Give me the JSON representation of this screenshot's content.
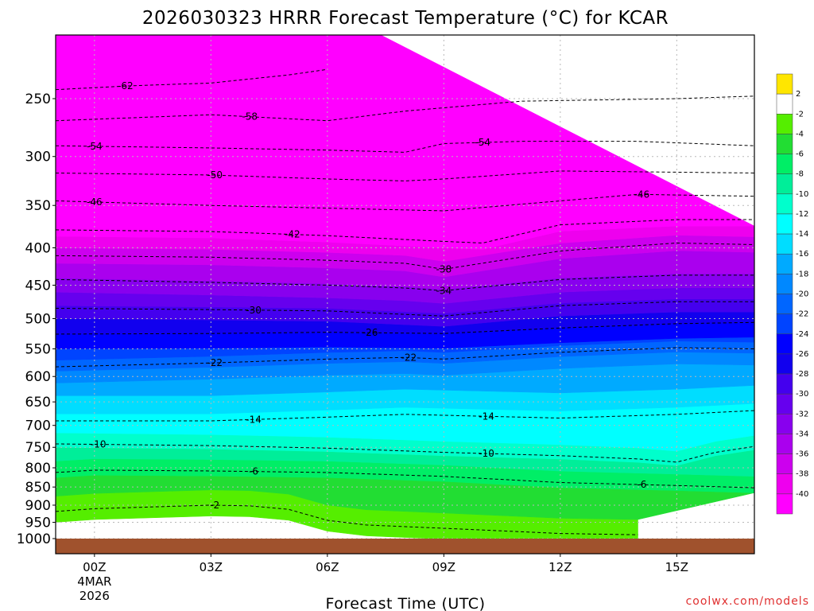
{
  "chart_data": {
    "type": "heatmap",
    "title": "2026030323 HRRR Forecast Temperature (°C) for KCAR",
    "xlabel": "Forecast Time (UTC)",
    "ylabel": "",
    "x_range_hours": [
      -1,
      17
    ],
    "y_range_hpa": [
      200,
      1030
    ],
    "y_scale": "log",
    "y_ticks": [
      250,
      300,
      350,
      400,
      450,
      500,
      550,
      600,
      650,
      700,
      750,
      800,
      850,
      900,
      950,
      1000
    ],
    "x_ticks": [
      {
        "hour": 0,
        "label": "00Z",
        "sub1": "4MAR",
        "sub2": "2026"
      },
      {
        "hour": 3,
        "label": "03Z"
      },
      {
        "hour": 6,
        "label": "06Z"
      },
      {
        "hour": 9,
        "label": "09Z"
      },
      {
        "hour": 12,
        "label": "12Z"
      },
      {
        "hour": 15,
        "label": "15Z"
      }
    ],
    "grid": true,
    "legend_placement": "right",
    "colorbar": [
      {
        "label": "2",
        "lo": 2,
        "hi": 6,
        "color": "#ffe600"
      },
      {
        "label": "-2",
        "lo": -2,
        "hi": 2,
        "color": "#ffffff"
      },
      {
        "label": "-4",
        "lo": -4,
        "hi": -2,
        "color": "#55ee00"
      },
      {
        "label": "-6",
        "lo": -6,
        "hi": -4,
        "color": "#22dd33"
      },
      {
        "label": "-8",
        "lo": -8,
        "hi": -6,
        "color": "#00ee66"
      },
      {
        "label": "-10",
        "lo": -10,
        "hi": -8,
        "color": "#00ee99"
      },
      {
        "label": "-12",
        "lo": -12,
        "hi": -10,
        "color": "#00ffcc"
      },
      {
        "label": "-14",
        "lo": -14,
        "hi": -12,
        "color": "#00ffff"
      },
      {
        "label": "-16",
        "lo": -16,
        "hi": -14,
        "color": "#00ddff"
      },
      {
        "label": "-18",
        "lo": -18,
        "hi": -16,
        "color": "#00aaff"
      },
      {
        "label": "-20",
        "lo": -20,
        "hi": -18,
        "color": "#0088ff"
      },
      {
        "label": "-22",
        "lo": -22,
        "hi": -20,
        "color": "#0066ff"
      },
      {
        "label": "-24",
        "lo": -24,
        "hi": -22,
        "color": "#0044ff"
      },
      {
        "label": "-26",
        "lo": -26,
        "hi": -24,
        "color": "#0000ff"
      },
      {
        "label": "-28",
        "lo": -28,
        "hi": -26,
        "color": "#1100ee"
      },
      {
        "label": "-30",
        "lo": -30,
        "hi": -28,
        "color": "#4400ee"
      },
      {
        "label": "-32",
        "lo": -32,
        "hi": -30,
        "color": "#6600ee"
      },
      {
        "label": "-34",
        "lo": -34,
        "hi": -32,
        "color": "#8800ee"
      },
      {
        "label": "-36",
        "lo": -36,
        "hi": -34,
        "color": "#aa00ee"
      },
      {
        "label": "-38",
        "lo": -38,
        "hi": -36,
        "color": "#cc00ee"
      },
      {
        "label": "-40",
        "lo": -40,
        "hi": -38,
        "color": "#ee00ee"
      },
      {
        "label": "",
        "lo": -80,
        "hi": -40,
        "color": "#ff00ff"
      }
    ],
    "temp_profile_at_00z": [
      {
        "p": 1000,
        "t": -1
      },
      {
        "p": 950,
        "t": -2
      },
      {
        "p": 900,
        "t": -3
      },
      {
        "p": 850,
        "t": -5
      },
      {
        "p": 800,
        "t": -7
      },
      {
        "p": 750,
        "t": -10
      },
      {
        "p": 700,
        "t": -13
      },
      {
        "p": 650,
        "t": -15
      },
      {
        "p": 600,
        "t": -19
      },
      {
        "p": 550,
        "t": -24
      },
      {
        "p": 500,
        "t": -28
      },
      {
        "p": 450,
        "t": -33
      },
      {
        "p": 400,
        "t": -38
      },
      {
        "p": 350,
        "t": -45
      },
      {
        "p": 300,
        "t": -52
      },
      {
        "p": 250,
        "t": -59
      },
      {
        "p": 200,
        "t": -64
      }
    ],
    "isotherms": [
      {
        "label": "-62",
        "points": [
          [
            -1,
            243
          ],
          [
            1,
            240
          ],
          [
            3,
            238
          ],
          [
            5,
            232
          ],
          [
            6,
            228
          ]
        ],
        "label_hour": 0.8
      },
      {
        "label": "-58",
        "points": [
          [
            -1,
            268
          ],
          [
            3,
            263
          ],
          [
            6,
            268
          ],
          [
            8,
            260
          ],
          [
            11,
            252
          ],
          [
            15,
            250
          ],
          [
            17,
            248
          ]
        ],
        "label_hour": 4.0
      },
      {
        "label": "-54",
        "points": [
          [
            -1,
            290
          ],
          [
            3,
            292
          ],
          [
            6,
            294
          ],
          [
            8,
            296
          ],
          [
            9,
            288
          ],
          [
            11,
            286
          ],
          [
            14,
            286
          ],
          [
            17,
            290
          ]
        ],
        "label_hour": 0.0
      },
      {
        "label": "-54",
        "points": [],
        "label_hour": 10.0
      },
      {
        "label": "-50",
        "points": [
          [
            -1,
            316
          ],
          [
            3,
            318
          ],
          [
            6,
            322
          ],
          [
            8,
            324
          ],
          [
            9,
            322
          ],
          [
            12,
            314
          ],
          [
            17,
            316
          ]
        ],
        "label_hour": 3.1
      },
      {
        "label": "-46",
        "points": [
          [
            -1,
            345
          ],
          [
            3,
            350
          ],
          [
            6,
            353
          ],
          [
            9,
            356
          ],
          [
            12,
            345
          ],
          [
            14,
            338
          ],
          [
            17,
            340
          ]
        ],
        "label_hour": 0.0
      },
      {
        "label": "-46",
        "points": [],
        "label_hour": 14.1
      },
      {
        "label": "-42",
        "points": [
          [
            -1,
            378
          ],
          [
            3,
            380
          ],
          [
            6,
            385
          ],
          [
            9,
            392
          ],
          [
            10,
            394
          ],
          [
            12,
            372
          ],
          [
            15,
            366
          ],
          [
            17,
            366
          ]
        ],
        "label_hour": 5.1
      },
      {
        "label": "-38",
        "points": [
          [
            -1,
            410
          ],
          [
            3,
            412
          ],
          [
            6,
            416
          ],
          [
            8,
            420
          ],
          [
            9,
            428
          ],
          [
            12,
            404
          ],
          [
            15,
            394
          ],
          [
            17,
            396
          ]
        ],
        "label_hour": 9.0
      },
      {
        "label": "-34",
        "points": [
          [
            -1,
            442
          ],
          [
            3,
            446
          ],
          [
            6,
            450
          ],
          [
            8,
            454
          ],
          [
            9,
            458
          ],
          [
            12,
            442
          ],
          [
            15,
            436
          ],
          [
            17,
            436
          ]
        ],
        "label_hour": 9.0
      },
      {
        "label": "-30",
        "points": [
          [
            -1,
            484
          ],
          [
            3,
            486
          ],
          [
            6,
            488
          ],
          [
            9,
            496
          ],
          [
            12,
            480
          ],
          [
            15,
            474
          ],
          [
            17,
            474
          ]
        ],
        "label_hour": 4.1
      },
      {
        "label": "-26",
        "points": [
          [
            -1,
            525
          ],
          [
            3,
            524
          ],
          [
            6,
            522
          ],
          [
            9,
            524
          ],
          [
            12,
            515
          ],
          [
            15,
            508
          ],
          [
            17,
            506
          ]
        ],
        "label_hour": 7.1
      },
      {
        "label": "-22",
        "points": [
          [
            -1,
            582
          ],
          [
            3,
            575
          ],
          [
            6,
            568
          ],
          [
            8,
            565
          ],
          [
            9,
            568
          ],
          [
            12,
            556
          ],
          [
            15,
            548
          ],
          [
            17,
            550
          ]
        ],
        "label_hour": 3.1
      },
      {
        "label": "-22",
        "points": [],
        "label_hour": 8.1
      },
      {
        "label": "-14",
        "points": [
          [
            -1,
            690
          ],
          [
            3,
            690
          ],
          [
            6,
            682
          ],
          [
            8,
            676
          ],
          [
            9,
            678
          ],
          [
            12,
            684
          ],
          [
            15,
            676
          ],
          [
            17,
            668
          ]
        ],
        "label_hour": 4.1
      },
      {
        "label": "-14",
        "points": [],
        "label_hour": 10.1
      },
      {
        "label": "-10",
        "points": [
          [
            -1,
            742
          ],
          [
            3,
            746
          ],
          [
            6,
            752
          ],
          [
            9,
            762
          ],
          [
            12,
            770
          ],
          [
            14,
            778
          ],
          [
            15,
            786
          ],
          [
            16,
            762
          ],
          [
            17,
            748
          ]
        ],
        "label_hour": 0.1
      },
      {
        "label": "-10",
        "points": [],
        "label_hour": 10.1
      },
      {
        "label": "-6",
        "points": [
          [
            -1,
            812
          ],
          [
            0,
            806
          ],
          [
            3,
            808
          ],
          [
            6,
            812
          ],
          [
            9,
            822
          ],
          [
            12,
            838
          ],
          [
            15,
            846
          ],
          [
            17,
            852
          ]
        ],
        "label_hour": 4.1
      },
      {
        "label": "-6",
        "points": [],
        "label_hour": 14.1
      },
      {
        "label": "-2",
        "points": [
          [
            -1,
            918
          ],
          [
            0,
            910
          ],
          [
            3,
            900
          ],
          [
            4,
            902
          ],
          [
            5,
            912
          ],
          [
            6,
            944
          ],
          [
            7,
            958
          ],
          [
            9,
            968
          ],
          [
            12,
            984
          ],
          [
            14,
            988
          ]
        ],
        "label_hour": 3.1
      }
    ]
  },
  "footer": {
    "site": "coolwx.com/models"
  }
}
